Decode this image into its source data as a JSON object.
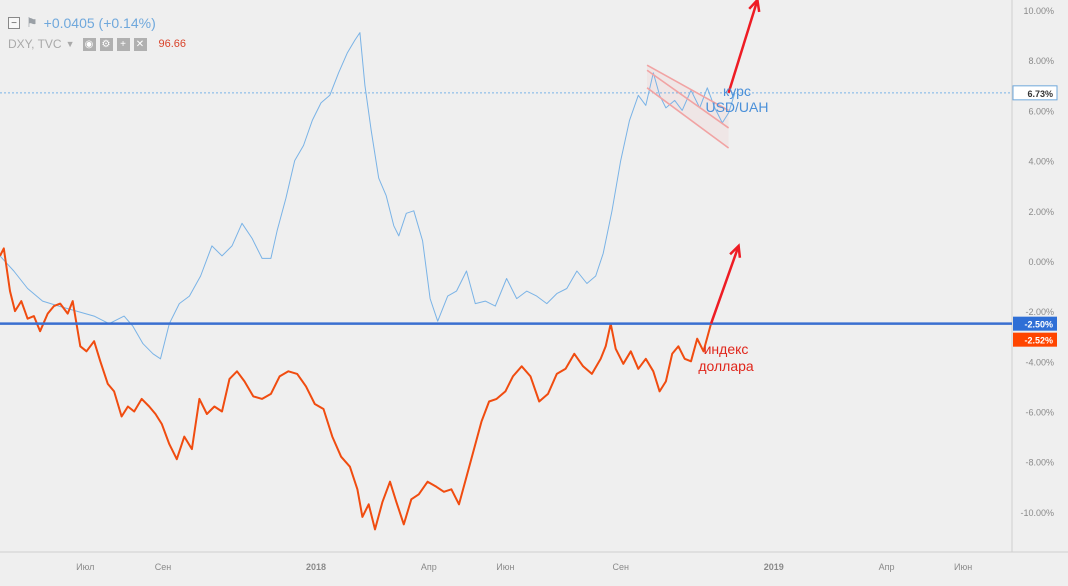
{
  "legend": {
    "change": "+0.0405 (+0.14%)",
    "symbol": "DXY, TVC",
    "value": "96.66",
    "collapse_icon": "minus-square-icon",
    "flag_icon": "flag-icon",
    "buttons": [
      "eye-icon",
      "gear-icon",
      "plus-icon",
      "close-icon"
    ]
  },
  "colors": {
    "background": "#efefef",
    "uah_line": "#7ab3e6",
    "dxy_line": "#f04c10",
    "level_line": "#3a6fd0",
    "annotation_arrow": "#ee1c24",
    "channel": "#f1a3a3",
    "badge_current": "#2f6fd6",
    "badge_dxy": "#ff4500",
    "axis_text": "#8a8a8a"
  },
  "annotations": {
    "uah_label_line1": "курс",
    "uah_label_line2": "USD/UAH",
    "dxy_label_line1": "индекс",
    "dxy_label_line2": "доллара"
  },
  "badges": {
    "uah_current": "6.73%",
    "level": "-2.50%",
    "dxy_current": "-2.52%"
  },
  "chart_data": {
    "type": "line",
    "x_axis": {
      "ticks": [
        "Июл",
        "Сен",
        "2018",
        "Апр",
        "Июн",
        "Сен",
        "2019",
        "Апр",
        "Июн"
      ],
      "tick_positions": [
        "2017-07-01",
        "2017-09-01",
        "2018-01-01",
        "2018-04-01",
        "2018-06-01",
        "2018-09-01",
        "2019-01-01",
        "2019-04-01",
        "2019-06-01"
      ],
      "range": [
        "2017-04-24",
        "2019-07-10"
      ]
    },
    "y_axis": {
      "unit": "%",
      "ticks": [
        "10.00%",
        "8.00%",
        "6.00%",
        "4.00%",
        "2.00%",
        "0.00%",
        "-2.00%",
        "-4.00%",
        "-6.00%",
        "-8.00%",
        "-10.00%"
      ],
      "range": [
        -11.6,
        10.4
      ],
      "position": "right"
    },
    "grid": false,
    "horizontal_level": -2.5,
    "series": [
      {
        "name": "курс USD/UAH",
        "points": [
          [
            "2017-04-24",
            0.2
          ],
          [
            "2017-05-05",
            -0.4
          ],
          [
            "2017-05-16",
            -1.1
          ],
          [
            "2017-05-28",
            -1.6
          ],
          [
            "2017-06-10",
            -1.8
          ],
          [
            "2017-06-24",
            -2.0
          ],
          [
            "2017-07-08",
            -2.2
          ],
          [
            "2017-07-20",
            -2.5
          ],
          [
            "2017-08-01",
            -2.2
          ],
          [
            "2017-08-08",
            -2.6
          ],
          [
            "2017-08-16",
            -3.3
          ],
          [
            "2017-08-24",
            -3.7
          ],
          [
            "2017-08-30",
            -3.9
          ],
          [
            "2017-09-06",
            -2.5
          ],
          [
            "2017-09-14",
            -1.7
          ],
          [
            "2017-09-22",
            -1.4
          ],
          [
            "2017-10-01",
            -0.6
          ],
          [
            "2017-10-10",
            0.6
          ],
          [
            "2017-10-18",
            0.2
          ],
          [
            "2017-10-26",
            0.6
          ],
          [
            "2017-11-03",
            1.5
          ],
          [
            "2017-11-11",
            0.9
          ],
          [
            "2017-11-19",
            0.1
          ],
          [
            "2017-11-26",
            0.1
          ],
          [
            "2017-12-01",
            1.2
          ],
          [
            "2017-12-08",
            2.5
          ],
          [
            "2017-12-15",
            4.0
          ],
          [
            "2017-12-22",
            4.6
          ],
          [
            "2017-12-29",
            5.6
          ],
          [
            "2018-01-05",
            6.3
          ],
          [
            "2018-01-12",
            6.6
          ],
          [
            "2018-01-19",
            7.5
          ],
          [
            "2018-01-26",
            8.3
          ],
          [
            "2018-02-01",
            8.8
          ],
          [
            "2018-02-05",
            9.1
          ],
          [
            "2018-02-09",
            7.0
          ],
          [
            "2018-02-14",
            5.2
          ],
          [
            "2018-02-20",
            3.3
          ],
          [
            "2018-02-26",
            2.6
          ],
          [
            "2018-03-04",
            1.4
          ],
          [
            "2018-03-08",
            1.0
          ],
          [
            "2018-03-14",
            1.9
          ],
          [
            "2018-03-20",
            2.0
          ],
          [
            "2018-03-27",
            0.8
          ],
          [
            "2018-04-02",
            -1.5
          ],
          [
            "2018-04-08",
            -2.4
          ],
          [
            "2018-04-16",
            -1.4
          ],
          [
            "2018-04-23",
            -1.2
          ],
          [
            "2018-05-01",
            -0.4
          ],
          [
            "2018-05-08",
            -1.7
          ],
          [
            "2018-05-16",
            -1.6
          ],
          [
            "2018-05-24",
            -1.8
          ],
          [
            "2018-06-02",
            -0.7
          ],
          [
            "2018-06-10",
            -1.5
          ],
          [
            "2018-06-18",
            -1.2
          ],
          [
            "2018-06-26",
            -1.4
          ],
          [
            "2018-07-04",
            -1.7
          ],
          [
            "2018-07-12",
            -1.3
          ],
          [
            "2018-07-20",
            -1.1
          ],
          [
            "2018-07-28",
            -0.4
          ],
          [
            "2018-08-05",
            -0.9
          ],
          [
            "2018-08-12",
            -0.6
          ],
          [
            "2018-08-18",
            0.3
          ],
          [
            "2018-08-25",
            2.0
          ],
          [
            "2018-09-01",
            4.0
          ],
          [
            "2018-09-08",
            5.6
          ],
          [
            "2018-09-15",
            6.6
          ],
          [
            "2018-09-21",
            6.2
          ],
          [
            "2018-09-27",
            7.5
          ],
          [
            "2018-10-02",
            6.6
          ],
          [
            "2018-10-07",
            6.1
          ],
          [
            "2018-10-14",
            6.4
          ],
          [
            "2018-10-20",
            6.0
          ],
          [
            "2018-10-27",
            6.8
          ],
          [
            "2018-11-03",
            6.1
          ],
          [
            "2018-11-09",
            6.9
          ],
          [
            "2018-11-15",
            6.1
          ],
          [
            "2018-11-21",
            5.5
          ],
          [
            "2018-11-26",
            5.9
          ],
          [
            "2018-12-01",
            6.7
          ]
        ]
      },
      {
        "name": "индекс доллара",
        "points": [
          [
            "2017-04-24",
            0.2
          ],
          [
            "2017-04-27",
            0.5
          ],
          [
            "2017-05-02",
            -1.2
          ],
          [
            "2017-05-06",
            -2.0
          ],
          [
            "2017-05-11",
            -1.6
          ],
          [
            "2017-05-16",
            -2.3
          ],
          [
            "2017-05-21",
            -2.2
          ],
          [
            "2017-05-26",
            -2.8
          ],
          [
            "2017-06-01",
            -2.1
          ],
          [
            "2017-06-06",
            -1.8
          ],
          [
            "2017-06-11",
            -1.7
          ],
          [
            "2017-06-17",
            -2.1
          ],
          [
            "2017-06-21",
            -1.6
          ],
          [
            "2017-06-27",
            -3.4
          ],
          [
            "2017-07-02",
            -3.6
          ],
          [
            "2017-07-08",
            -3.2
          ],
          [
            "2017-07-13",
            -4.0
          ],
          [
            "2017-07-19",
            -4.9
          ],
          [
            "2017-07-24",
            -5.2
          ],
          [
            "2017-07-30",
            -6.2
          ],
          [
            "2017-08-04",
            -5.8
          ],
          [
            "2017-08-09",
            -6.0
          ],
          [
            "2017-08-15",
            -5.5
          ],
          [
            "2017-08-21",
            -5.8
          ],
          [
            "2017-08-26",
            -6.1
          ],
          [
            "2017-08-31",
            -6.5
          ],
          [
            "2017-09-06",
            -7.3
          ],
          [
            "2017-09-12",
            -7.9
          ],
          [
            "2017-09-18",
            -7.0
          ],
          [
            "2017-09-24",
            -7.5
          ],
          [
            "2017-09-30",
            -5.5
          ],
          [
            "2017-10-06",
            -6.1
          ],
          [
            "2017-10-12",
            -5.8
          ],
          [
            "2017-10-18",
            -6.0
          ],
          [
            "2017-10-24",
            -4.7
          ],
          [
            "2017-10-30",
            -4.4
          ],
          [
            "2017-11-05",
            -4.8
          ],
          [
            "2017-11-12",
            -5.4
          ],
          [
            "2017-11-19",
            -5.5
          ],
          [
            "2017-11-26",
            -5.3
          ],
          [
            "2017-12-03",
            -4.6
          ],
          [
            "2017-12-10",
            -4.4
          ],
          [
            "2017-12-17",
            -4.5
          ],
          [
            "2017-12-24",
            -5.0
          ],
          [
            "2017-12-31",
            -5.7
          ],
          [
            "2018-01-07",
            -5.9
          ],
          [
            "2018-01-14",
            -7.0
          ],
          [
            "2018-01-21",
            -7.8
          ],
          [
            "2018-01-28",
            -8.2
          ],
          [
            "2018-02-03",
            -9.1
          ],
          [
            "2018-02-07",
            -10.2
          ],
          [
            "2018-02-12",
            -9.7
          ],
          [
            "2018-02-17",
            -10.7
          ],
          [
            "2018-02-23",
            -9.6
          ],
          [
            "2018-03-01",
            -8.8
          ],
          [
            "2018-03-06",
            -9.6
          ],
          [
            "2018-03-12",
            -10.5
          ],
          [
            "2018-03-18",
            -9.5
          ],
          [
            "2018-03-24",
            -9.3
          ],
          [
            "2018-03-31",
            -8.8
          ],
          [
            "2018-04-07",
            -9.0
          ],
          [
            "2018-04-13",
            -9.2
          ],
          [
            "2018-04-19",
            -9.1
          ],
          [
            "2018-04-25",
            -9.7
          ],
          [
            "2018-05-01",
            -8.6
          ],
          [
            "2018-05-07",
            -7.5
          ],
          [
            "2018-05-13",
            -6.4
          ],
          [
            "2018-05-19",
            -5.6
          ],
          [
            "2018-05-25",
            -5.5
          ],
          [
            "2018-06-01",
            -5.2
          ],
          [
            "2018-06-07",
            -4.6
          ],
          [
            "2018-06-14",
            -4.2
          ],
          [
            "2018-06-21",
            -4.6
          ],
          [
            "2018-06-28",
            -5.6
          ],
          [
            "2018-07-05",
            -5.3
          ],
          [
            "2018-07-12",
            -4.5
          ],
          [
            "2018-07-19",
            -4.3
          ],
          [
            "2018-07-26",
            -3.7
          ],
          [
            "2018-08-02",
            -4.2
          ],
          [
            "2018-08-09",
            -4.5
          ],
          [
            "2018-08-16",
            -3.9
          ],
          [
            "2018-08-20",
            -3.4
          ],
          [
            "2018-08-24",
            -2.5
          ],
          [
            "2018-08-28",
            -3.5
          ],
          [
            "2018-09-03",
            -4.1
          ],
          [
            "2018-09-09",
            -3.6
          ],
          [
            "2018-09-15",
            -4.3
          ],
          [
            "2018-09-21",
            -3.9
          ],
          [
            "2018-09-27",
            -4.4
          ],
          [
            "2018-10-02",
            -5.2
          ],
          [
            "2018-10-07",
            -4.8
          ],
          [
            "2018-10-12",
            -3.7
          ],
          [
            "2018-10-17",
            -3.4
          ],
          [
            "2018-10-22",
            -3.9
          ],
          [
            "2018-10-27",
            -4.0
          ],
          [
            "2018-11-01",
            -3.1
          ],
          [
            "2018-11-06",
            -3.6
          ],
          [
            "2018-11-12",
            -2.5
          ]
        ]
      }
    ],
    "drawings": {
      "channel_upper": [
        [
          "2018-09-22",
          7.8
        ],
        [
          "2018-11-26",
          6.0
        ]
      ],
      "channel_lower": [
        [
          "2018-09-22",
          7.6
        ],
        [
          "2018-11-26",
          5.3
        ]
      ],
      "channel_outer_lower": [
        [
          "2018-09-22",
          6.9
        ],
        [
          "2018-11-26",
          4.5
        ]
      ],
      "arrow_uah": [
        [
          "2018-11-26",
          6.7
        ],
        [
          "2018-12-19",
          10.4
        ]
      ],
      "arrow_dxy": [
        [
          "2018-11-12",
          -2.5
        ],
        [
          "2018-12-04",
          0.6
        ]
      ]
    }
  }
}
